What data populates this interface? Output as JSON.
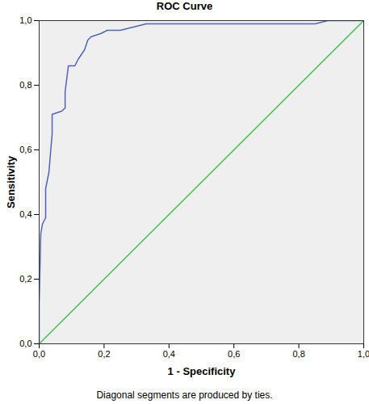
{
  "chart_data": {
    "type": "line",
    "title": "ROC Curve",
    "x_label": "1 - Specificity",
    "y_label": "Sensitivity",
    "caption": "Diagonal segments are produced by ties.",
    "xlim": [
      0,
      1
    ],
    "ylim": [
      0,
      1
    ],
    "xticks": [
      {
        "value": 0,
        "label": "0,0"
      },
      {
        "value": 0.2,
        "label": "0,2"
      },
      {
        "value": 0.4,
        "label": "0,4"
      },
      {
        "value": 0.6,
        "label": "0,6"
      },
      {
        "value": 0.8,
        "label": "0,8"
      },
      {
        "value": 1,
        "label": "1,0"
      }
    ],
    "yticks": [
      {
        "value": 0,
        "label": "0,0"
      },
      {
        "value": 0.2,
        "label": "0,2"
      },
      {
        "value": 0.4,
        "label": "0,4"
      },
      {
        "value": 0.6,
        "label": "0,6"
      },
      {
        "value": 0.8,
        "label": "0,8"
      },
      {
        "value": 1,
        "label": "1,0"
      }
    ],
    "grid": false,
    "series": [
      {
        "color": "#3fc04f",
        "x": [
          0,
          1
        ],
        "values": [
          0,
          1
        ]
      },
      {
        "color": "#5264b8",
        "x": [
          0,
          0,
          0.005,
          0.01,
          0.02,
          0.02,
          0.03,
          0.035,
          0.04,
          0.04,
          0.07,
          0.08,
          0.08,
          0.09,
          0.11,
          0.12,
          0.14,
          0.15,
          0.16,
          0.19,
          0.21,
          0.25,
          0.33,
          0.85,
          0.89,
          1
        ],
        "values": [
          0,
          0.12,
          0.34,
          0.37,
          0.39,
          0.48,
          0.53,
          0.59,
          0.65,
          0.71,
          0.72,
          0.73,
          0.78,
          0.86,
          0.86,
          0.88,
          0.91,
          0.94,
          0.95,
          0.96,
          0.97,
          0.97,
          0.99,
          0.99,
          1,
          1
        ]
      }
    ]
  }
}
